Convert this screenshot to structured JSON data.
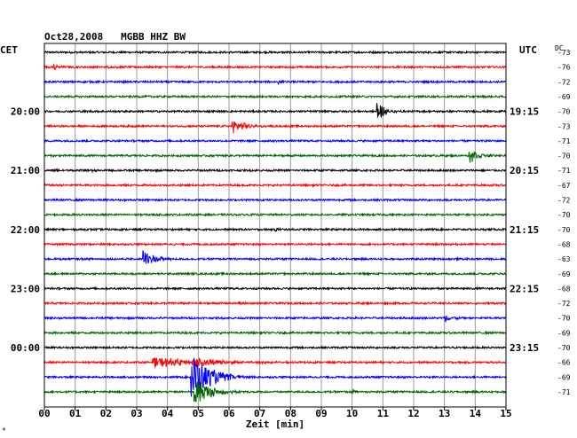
{
  "chart_data": {
    "type": "line",
    "title": "Oct28,2008   MGBB HHZ BW",
    "left_label": "CET",
    "right_label": "UTC",
    "dc_label": "DC",
    "xlabel": "Zeit [min]",
    "corner_mark": "*",
    "xlim": [
      0,
      15
    ],
    "x_ticks": [
      "00",
      "01",
      "02",
      "03",
      "04",
      "05",
      "06",
      "07",
      "08",
      "09",
      "10",
      "11",
      "12",
      "13",
      "14",
      "15"
    ],
    "colors": [
      "#000000",
      "#ff0000",
      "#0000ff",
      "#006400"
    ],
    "left_hour_labels": [
      {
        "trace": 4,
        "label": "20:00"
      },
      {
        "trace": 8,
        "label": "21:00"
      },
      {
        "trace": 12,
        "label": "22:00"
      },
      {
        "trace": 16,
        "label": "23:00"
      },
      {
        "trace": 20,
        "label": "00:00"
      }
    ],
    "right_hour_labels": [
      {
        "trace": 4,
        "label": "19:15"
      },
      {
        "trace": 8,
        "label": "20:15"
      },
      {
        "trace": 12,
        "label": "21:15"
      },
      {
        "trace": 16,
        "label": "22:15"
      },
      {
        "trace": 20,
        "label": "23:15"
      }
    ],
    "dc_offsets": [
      "-73",
      "-76",
      "-72",
      "-69",
      "-70",
      "-73",
      "-71",
      "-70",
      "-71",
      "-67",
      "-72",
      "-70",
      "-70",
      "-68",
      "-63",
      "-69",
      "-68",
      "-72",
      "-70",
      "-69",
      "-70",
      "-66",
      "-69",
      "-71"
    ],
    "events": [
      {
        "trace": 1,
        "t": 0.3,
        "amp": 0.45,
        "dur": 0.6
      },
      {
        "trace": 1,
        "t": 2.0,
        "amp": 0.12,
        "dur": 0.4
      },
      {
        "trace": 2,
        "t": 7.6,
        "amp": 0.35,
        "dur": 0.4
      },
      {
        "trace": 4,
        "t": 10.8,
        "amp": 1.5,
        "dur": 0.8
      },
      {
        "trace": 5,
        "t": 6.1,
        "amp": 1.0,
        "dur": 1.4
      },
      {
        "trace": 7,
        "t": 13.8,
        "amp": 1.2,
        "dur": 0.9
      },
      {
        "trace": 8,
        "t": 0.3,
        "amp": 0.2,
        "dur": 0.5
      },
      {
        "trace": 8,
        "t": 1.5,
        "amp": 0.3,
        "dur": 0.4
      },
      {
        "trace": 12,
        "t": 7.5,
        "amp": 0.3,
        "dur": 0.4
      },
      {
        "trace": 14,
        "t": 3.2,
        "amp": 1.6,
        "dur": 1.0
      },
      {
        "trace": 17,
        "t": 6.3,
        "amp": 0.2,
        "dur": 0.3
      },
      {
        "trace": 18,
        "t": 13.0,
        "amp": 0.6,
        "dur": 0.8
      },
      {
        "trace": 21,
        "t": 3.5,
        "amp": 0.7,
        "dur": 5.0
      },
      {
        "trace": 21,
        "t": 4.8,
        "amp": 0.9,
        "dur": 2.0
      },
      {
        "trace": 22,
        "t": 4.75,
        "amp": 3.5,
        "dur": 2.0
      },
      {
        "trace": 23,
        "t": 4.85,
        "amp": 2.2,
        "dur": 1.6
      },
      {
        "trace": 23,
        "t": 10.0,
        "amp": 0.3,
        "dur": 0.5
      }
    ]
  }
}
